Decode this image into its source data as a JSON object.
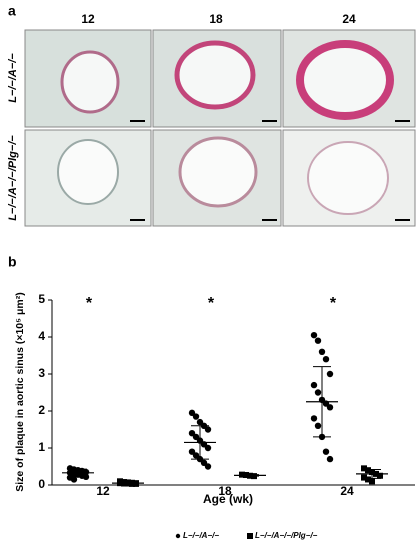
{
  "panel_a": {
    "label": "a",
    "columns": [
      "12",
      "18",
      "24"
    ],
    "rows": [
      "L−/−/A−/−",
      "L−/−/A−/−/Plg−/−"
    ]
  },
  "chart_data": {
    "type": "dotplot",
    "label": "b",
    "y_label": "Size of plaque in aortic sinus (×10⁵ μm²)",
    "x_label": "Age (wk)",
    "categories": [
      "12",
      "18",
      "24"
    ],
    "ylim": [
      0,
      5
    ],
    "yticks": [
      0,
      1,
      2,
      3,
      4,
      5
    ],
    "annotations": [
      "*",
      "*",
      "*"
    ],
    "series": [
      {
        "name": "L−/−/A−/−",
        "marker": "circle",
        "color": "#000000",
        "values": [
          [
            0.45,
            0.42,
            0.4,
            0.38,
            0.35,
            0.33,
            0.3,
            0.28,
            0.25,
            0.22,
            0.2,
            0.15
          ],
          [
            1.95,
            1.85,
            1.7,
            1.6,
            1.5,
            1.4,
            1.3,
            1.2,
            1.1,
            1.0,
            0.9,
            0.8,
            0.7,
            0.6,
            0.5
          ],
          [
            4.05,
            3.9,
            3.6,
            3.4,
            3.0,
            2.7,
            2.5,
            2.3,
            2.2,
            2.1,
            1.8,
            1.6,
            1.3,
            0.9,
            0.7
          ]
        ],
        "mean": [
          0.33,
          1.15,
          2.25
        ],
        "sd": [
          0.1,
          0.45,
          0.95
        ]
      },
      {
        "name": "L−/−/A−/−/Plg−/−",
        "marker": "square",
        "color": "#000000",
        "values": [
          [
            0.1,
            0.08,
            0.07,
            0.06,
            0.05,
            0.05,
            0.04,
            0.04,
            0.03,
            0.03
          ],
          [
            0.28,
            0.27,
            0.25,
            0.24
          ],
          [
            0.45,
            0.4,
            0.35,
            0.3,
            0.25,
            0.2,
            0.15,
            0.1
          ]
        ],
        "mean": [
          0.05,
          0.26,
          0.3
        ],
        "sd": [
          0.02,
          0.02,
          0.12
        ]
      }
    ]
  }
}
